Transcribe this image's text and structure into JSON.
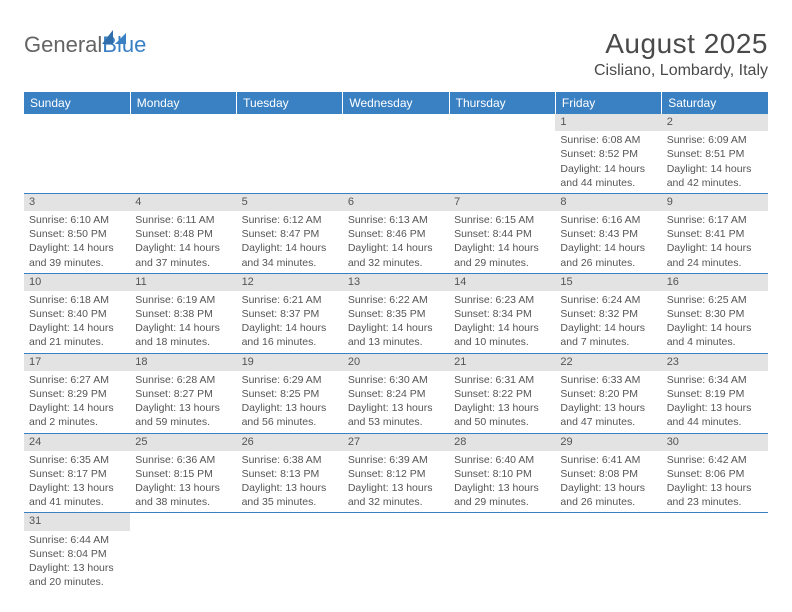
{
  "brand": {
    "part1": "General",
    "part2": "Blue"
  },
  "title": "August 2025",
  "location": "Cisliano, Lombardy, Italy",
  "header_bg": "#3a81c4",
  "daynum_bg": "#e3e3e3",
  "divider_color": "#3a81c4",
  "weekdays": [
    "Sunday",
    "Monday",
    "Tuesday",
    "Wednesday",
    "Thursday",
    "Friday",
    "Saturday"
  ],
  "weeks": [
    [
      null,
      null,
      null,
      null,
      null,
      {
        "n": "1",
        "sr": "Sunrise: 6:08 AM",
        "ss": "Sunset: 8:52 PM",
        "dl": "Daylight: 14 hours and 44 minutes."
      },
      {
        "n": "2",
        "sr": "Sunrise: 6:09 AM",
        "ss": "Sunset: 8:51 PM",
        "dl": "Daylight: 14 hours and 42 minutes."
      }
    ],
    [
      {
        "n": "3",
        "sr": "Sunrise: 6:10 AM",
        "ss": "Sunset: 8:50 PM",
        "dl": "Daylight: 14 hours and 39 minutes."
      },
      {
        "n": "4",
        "sr": "Sunrise: 6:11 AM",
        "ss": "Sunset: 8:48 PM",
        "dl": "Daylight: 14 hours and 37 minutes."
      },
      {
        "n": "5",
        "sr": "Sunrise: 6:12 AM",
        "ss": "Sunset: 8:47 PM",
        "dl": "Daylight: 14 hours and 34 minutes."
      },
      {
        "n": "6",
        "sr": "Sunrise: 6:13 AM",
        "ss": "Sunset: 8:46 PM",
        "dl": "Daylight: 14 hours and 32 minutes."
      },
      {
        "n": "7",
        "sr": "Sunrise: 6:15 AM",
        "ss": "Sunset: 8:44 PM",
        "dl": "Daylight: 14 hours and 29 minutes."
      },
      {
        "n": "8",
        "sr": "Sunrise: 6:16 AM",
        "ss": "Sunset: 8:43 PM",
        "dl": "Daylight: 14 hours and 26 minutes."
      },
      {
        "n": "9",
        "sr": "Sunrise: 6:17 AM",
        "ss": "Sunset: 8:41 PM",
        "dl": "Daylight: 14 hours and 24 minutes."
      }
    ],
    [
      {
        "n": "10",
        "sr": "Sunrise: 6:18 AM",
        "ss": "Sunset: 8:40 PM",
        "dl": "Daylight: 14 hours and 21 minutes."
      },
      {
        "n": "11",
        "sr": "Sunrise: 6:19 AM",
        "ss": "Sunset: 8:38 PM",
        "dl": "Daylight: 14 hours and 18 minutes."
      },
      {
        "n": "12",
        "sr": "Sunrise: 6:21 AM",
        "ss": "Sunset: 8:37 PM",
        "dl": "Daylight: 14 hours and 16 minutes."
      },
      {
        "n": "13",
        "sr": "Sunrise: 6:22 AM",
        "ss": "Sunset: 8:35 PM",
        "dl": "Daylight: 14 hours and 13 minutes."
      },
      {
        "n": "14",
        "sr": "Sunrise: 6:23 AM",
        "ss": "Sunset: 8:34 PM",
        "dl": "Daylight: 14 hours and 10 minutes."
      },
      {
        "n": "15",
        "sr": "Sunrise: 6:24 AM",
        "ss": "Sunset: 8:32 PM",
        "dl": "Daylight: 14 hours and 7 minutes."
      },
      {
        "n": "16",
        "sr": "Sunrise: 6:25 AM",
        "ss": "Sunset: 8:30 PM",
        "dl": "Daylight: 14 hours and 4 minutes."
      }
    ],
    [
      {
        "n": "17",
        "sr": "Sunrise: 6:27 AM",
        "ss": "Sunset: 8:29 PM",
        "dl": "Daylight: 14 hours and 2 minutes."
      },
      {
        "n": "18",
        "sr": "Sunrise: 6:28 AM",
        "ss": "Sunset: 8:27 PM",
        "dl": "Daylight: 13 hours and 59 minutes."
      },
      {
        "n": "19",
        "sr": "Sunrise: 6:29 AM",
        "ss": "Sunset: 8:25 PM",
        "dl": "Daylight: 13 hours and 56 minutes."
      },
      {
        "n": "20",
        "sr": "Sunrise: 6:30 AM",
        "ss": "Sunset: 8:24 PM",
        "dl": "Daylight: 13 hours and 53 minutes."
      },
      {
        "n": "21",
        "sr": "Sunrise: 6:31 AM",
        "ss": "Sunset: 8:22 PM",
        "dl": "Daylight: 13 hours and 50 minutes."
      },
      {
        "n": "22",
        "sr": "Sunrise: 6:33 AM",
        "ss": "Sunset: 8:20 PM",
        "dl": "Daylight: 13 hours and 47 minutes."
      },
      {
        "n": "23",
        "sr": "Sunrise: 6:34 AM",
        "ss": "Sunset: 8:19 PM",
        "dl": "Daylight: 13 hours and 44 minutes."
      }
    ],
    [
      {
        "n": "24",
        "sr": "Sunrise: 6:35 AM",
        "ss": "Sunset: 8:17 PM",
        "dl": "Daylight: 13 hours and 41 minutes."
      },
      {
        "n": "25",
        "sr": "Sunrise: 6:36 AM",
        "ss": "Sunset: 8:15 PM",
        "dl": "Daylight: 13 hours and 38 minutes."
      },
      {
        "n": "26",
        "sr": "Sunrise: 6:38 AM",
        "ss": "Sunset: 8:13 PM",
        "dl": "Daylight: 13 hours and 35 minutes."
      },
      {
        "n": "27",
        "sr": "Sunrise: 6:39 AM",
        "ss": "Sunset: 8:12 PM",
        "dl": "Daylight: 13 hours and 32 minutes."
      },
      {
        "n": "28",
        "sr": "Sunrise: 6:40 AM",
        "ss": "Sunset: 8:10 PM",
        "dl": "Daylight: 13 hours and 29 minutes."
      },
      {
        "n": "29",
        "sr": "Sunrise: 6:41 AM",
        "ss": "Sunset: 8:08 PM",
        "dl": "Daylight: 13 hours and 26 minutes."
      },
      {
        "n": "30",
        "sr": "Sunrise: 6:42 AM",
        "ss": "Sunset: 8:06 PM",
        "dl": "Daylight: 13 hours and 23 minutes."
      }
    ],
    [
      {
        "n": "31",
        "sr": "Sunrise: 6:44 AM",
        "ss": "Sunset: 8:04 PM",
        "dl": "Daylight: 13 hours and 20 minutes."
      },
      null,
      null,
      null,
      null,
      null,
      null
    ]
  ]
}
